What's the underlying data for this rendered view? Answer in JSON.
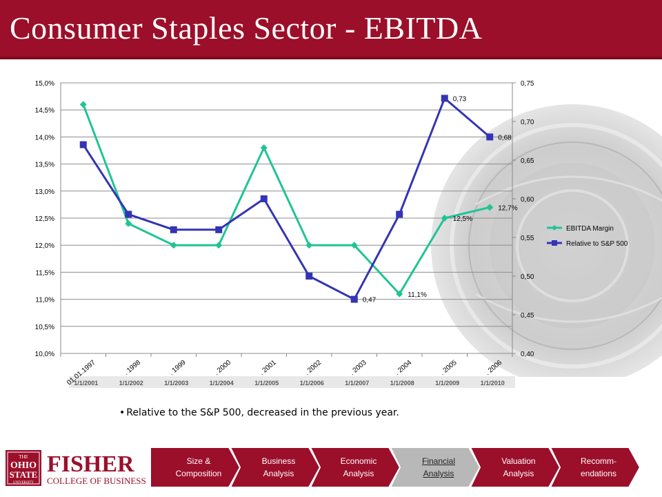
{
  "slide": {
    "title": "Consumer Staples Sector - EBITDA",
    "note": "Relative to the S&P 500, decreased in the previous year."
  },
  "footer": {
    "logo_main": "FISHER",
    "logo_sub": "COLLEGE OF BUSINESS",
    "logo_seal_top": "THE",
    "logo_seal_mid": "OHIO",
    "logo_seal_bottom": "STATE",
    "logo_seal_uni": "UNIVERSITY",
    "nav": [
      {
        "label": "Size &\nComposition",
        "active": false
      },
      {
        "label": "Business\nAnalysis",
        "active": false
      },
      {
        "label": "Economic\nAnalysis",
        "active": false
      },
      {
        "label": "Financial\nAnalysis",
        "active": true
      },
      {
        "label": "Valuation\nAnalysis",
        "active": false
      },
      {
        "label": "Recomm-\nendations",
        "active": false
      }
    ]
  },
  "colors": {
    "brand": "#9b0f2a",
    "ebitda_margin": "#1fc494",
    "relative_sp500": "#3434b4",
    "nav_inactive": "#9b0f2a",
    "nav_active": "#b8b8b8"
  },
  "chart_data": {
    "type": "line",
    "categories": [
      "01.01.1997",
      ". 1998",
      ". 1999",
      ". 2000",
      ". 2001",
      ". 2002",
      ". 2003",
      ". 2004",
      ". 2005",
      ". 2006"
    ],
    "secondary_categories": [
      "1/1/2001",
      "1/1/2002",
      "1/1/2003",
      "1/1/2004",
      "1/1/2005",
      "1/1/2006",
      "1/1/2007",
      "1/1/2008",
      "1/1/2009",
      "1/1/2010"
    ],
    "y_left": {
      "min": 10.0,
      "max": 15.0,
      "step": 0.5,
      "tick_labels": [
        "10,0%",
        "10,5%",
        "11,0%",
        "11,5%",
        "12,0%",
        "12,5%",
        "13,0%",
        "13,5%",
        "14,0%",
        "14,5%",
        "15,0%"
      ]
    },
    "y_right": {
      "min": 0.4,
      "max": 0.75,
      "step": 0.05,
      "tick_labels": [
        "0,40",
        "0,45",
        "0,50",
        "0,55",
        "0,60",
        "0,65",
        "0,70",
        "0,75"
      ]
    },
    "grid": true,
    "legend_position": "right",
    "series": [
      {
        "name": "EBITDA Margin",
        "axis": "left",
        "marker": "diamond",
        "values": [
          14.6,
          12.4,
          12.0,
          12.0,
          13.8,
          12.0,
          12.0,
          11.1,
          12.5,
          12.7
        ],
        "data_labels": {
          "7": "11,1%",
          "8": "12,5%",
          "9": "12,7%"
        }
      },
      {
        "name": "Relative to S&P 500",
        "axis": "right",
        "marker": "square",
        "values": [
          0.67,
          0.58,
          0.56,
          0.56,
          0.6,
          0.5,
          0.47,
          0.58,
          0.73,
          0.68
        ],
        "data_labels": {
          "6": "0,47",
          "8": "0,73",
          "9": "0,68"
        }
      }
    ]
  }
}
